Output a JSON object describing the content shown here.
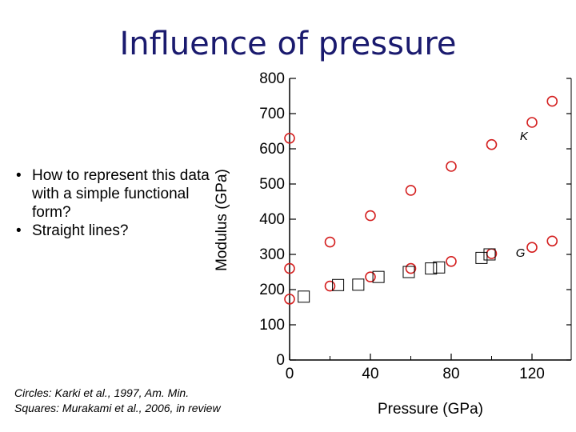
{
  "slide": {
    "title": "Influence of pressure",
    "bullets": [
      "How to represent this data with a simple functional form?",
      "Straight lines?"
    ],
    "caption": [
      "Circles: Karki et al., 1997, Am. Min.",
      "Squares: Murakami et al., 2006, in review"
    ]
  },
  "chart_data": {
    "type": "scatter",
    "xlabel": "Pressure (GPa)",
    "ylabel": "Modulus (GPa)",
    "xlim": [
      0,
      130
    ],
    "ylim": [
      0,
      800
    ],
    "xticks": [
      0,
      40,
      80,
      120
    ],
    "yticks": [
      0,
      100,
      200,
      300,
      400,
      500,
      600,
      700,
      800
    ],
    "grid": false,
    "annotations": [
      {
        "text": "K",
        "x": 114,
        "y": 625
      },
      {
        "text": "G",
        "x": 112,
        "y": 293
      }
    ],
    "series": [
      {
        "marker": "circle",
        "color": "#d42020",
        "x": [
          0,
          20,
          40,
          60,
          80,
          100,
          120,
          130
        ],
        "y": [
          630,
          335,
          410,
          482,
          550,
          612,
          675,
          735
        ]
      },
      {
        "marker": "circle",
        "color": "#d42020",
        "x": [
          0,
          20,
          40,
          60,
          80,
          100,
          120,
          130
        ],
        "y": [
          173,
          210,
          236,
          260,
          280,
          302,
          320,
          338
        ]
      },
      {
        "marker": "circle",
        "color": "#d42020",
        "x": [
          0
        ],
        "y": [
          260
        ]
      },
      {
        "marker": "square",
        "color": "#000000",
        "x": [
          7,
          24,
          34,
          44,
          59,
          70,
          74,
          95,
          99
        ],
        "y": [
          180,
          213,
          214,
          236,
          250,
          260,
          263,
          290,
          300
        ]
      }
    ]
  }
}
